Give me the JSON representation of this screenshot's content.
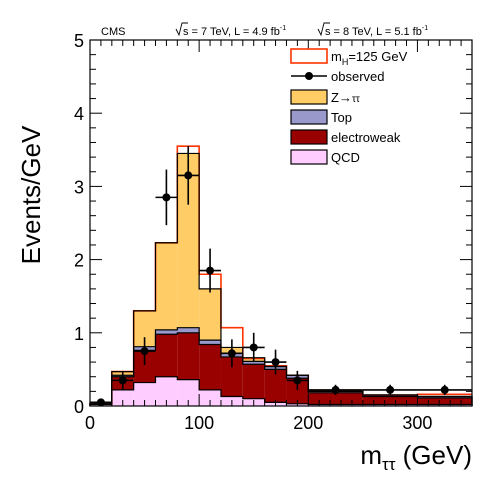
{
  "chart_data": {
    "type": "bar",
    "experiment": "CMS",
    "lumi": [
      {
        "sqrt_s": "7 TeV",
        "lumi": "4.9"
      },
      {
        "sqrt_s": "8 TeV",
        "lumi": "5.1"
      }
    ],
    "lumi_unit": "fb",
    "lumi_unit_exp": "-1",
    "xlabel_main": "m",
    "xlabel_sub": "ττ",
    "xlabel_unit": " (GeV)",
    "ylabel": "Events/GeV",
    "xlim": [
      0,
      350
    ],
    "ylim": [
      0,
      5
    ],
    "x_ticks": [
      0,
      100,
      200,
      300
    ],
    "y_ticks": [
      0,
      1,
      2,
      3,
      4,
      5
    ],
    "bin_edges": [
      0,
      20,
      40,
      60,
      80,
      100,
      120,
      140,
      160,
      180,
      200,
      250,
      300,
      350
    ],
    "stack": [
      {
        "key": "qcd",
        "label": "QCD",
        "color": "#ffccff",
        "values": [
          0.02,
          0.22,
          0.32,
          0.4,
          0.36,
          0.22,
          0.13,
          0.1,
          0.05,
          0.03,
          0.02,
          0.02,
          0.02
        ]
      },
      {
        "key": "electroweak",
        "label": "electroweak",
        "color": "#990000",
        "values": [
          0.01,
          0.18,
          0.44,
          0.58,
          0.64,
          0.62,
          0.54,
          0.47,
          0.45,
          0.35,
          0.16,
          0.11,
          0.09
        ]
      },
      {
        "key": "top",
        "label": "Top",
        "color": "#9999cc",
        "values": [
          0.0,
          0.02,
          0.05,
          0.06,
          0.07,
          0.06,
          0.05,
          0.04,
          0.04,
          0.04,
          0.02,
          0.02,
          0.02
        ]
      },
      {
        "key": "ztt",
        "label": "Z→ττ",
        "label_prefix": "Z",
        "label_arrow": "→",
        "label_suffix": "ττ",
        "color": "#ffcc66",
        "values": [
          0.0,
          0.05,
          0.49,
          1.19,
          2.38,
          0.7,
          0.08,
          0.05,
          0.0,
          0.0,
          0.0,
          0.0,
          0.0
        ]
      }
    ],
    "signal": {
      "label": "m",
      "label_sub": "H",
      "label_rest": "=125 GeV",
      "color": "#ff3300",
      "values": [
        0.03,
        0.47,
        1.3,
        2.23,
        3.55,
        1.8,
        1.07,
        0.65,
        0.55,
        0.42,
        0.2,
        0.15,
        0.16
      ]
    },
    "observed": {
      "label": "observed",
      "points": [
        {
          "x": 10,
          "y": 0.05,
          "err": 0.05
        },
        {
          "x": 30,
          "y": 0.35,
          "err": 0.13
        },
        {
          "x": 50,
          "y": 0.75,
          "err": 0.19
        },
        {
          "x": 70,
          "y": 2.85,
          "err": 0.38
        },
        {
          "x": 90,
          "y": 3.15,
          "err": 0.4
        },
        {
          "x": 110,
          "y": 1.85,
          "err": 0.3
        },
        {
          "x": 130,
          "y": 0.72,
          "err": 0.19
        },
        {
          "x": 150,
          "y": 0.8,
          "err": 0.2
        },
        {
          "x": 170,
          "y": 0.6,
          "err": 0.17
        },
        {
          "x": 190,
          "y": 0.35,
          "err": 0.13
        },
        {
          "x": 225,
          "y": 0.22,
          "err": 0.07
        },
        {
          "x": 275,
          "y": 0.22,
          "err": 0.07
        },
        {
          "x": 325,
          "y": 0.22,
          "err": 0.07
        }
      ]
    }
  }
}
